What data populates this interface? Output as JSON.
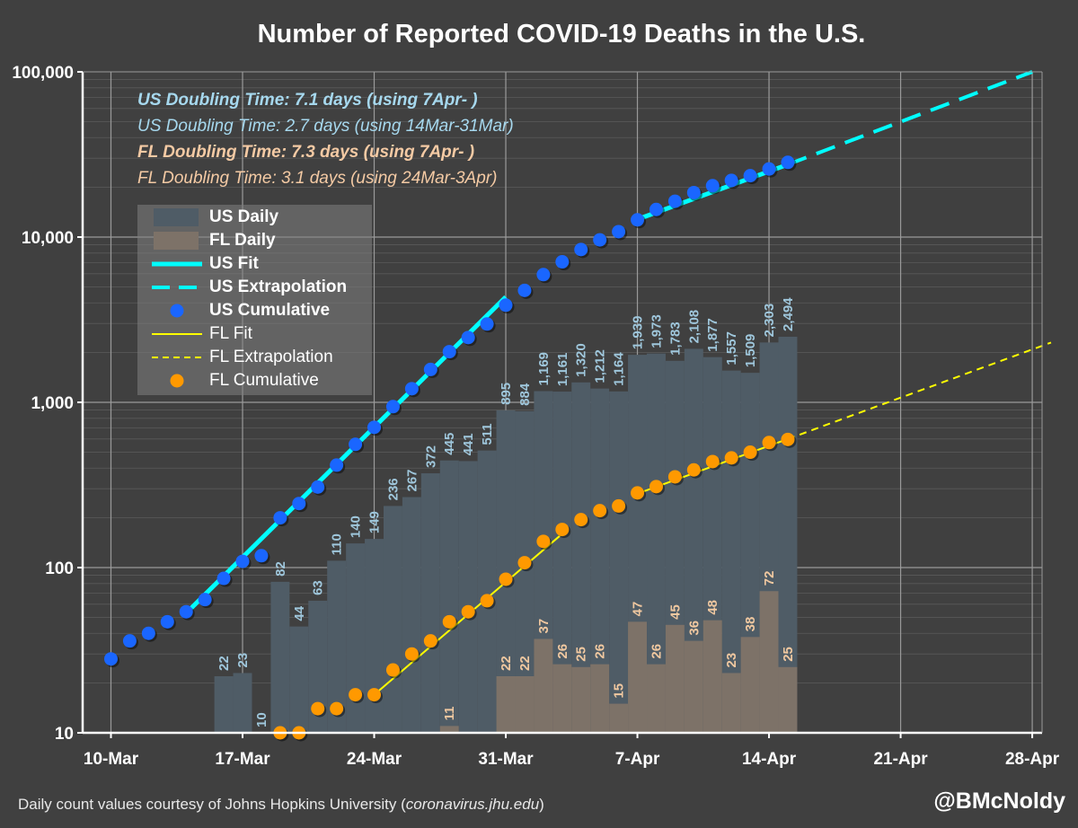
{
  "title": "Number of Reported COVID-19 Deaths in the U.S.",
  "notes": [
    {
      "text": "US Doubling Time: 7.1 days (using 7Apr- )",
      "color": "#a6d8ee",
      "bold": true
    },
    {
      "text": "US Doubling Time: 2.7 days (using 14Mar-31Mar)",
      "color": "#a6d8ee",
      "bold": false
    },
    {
      "text": "FL Doubling Time: 7.3 days (using 7Apr- )",
      "color": "#f4caa4",
      "bold": true
    },
    {
      "text": "FL Doubling Time: 3.1 days (using 24Mar-3Apr)",
      "color": "#f4caa4",
      "bold": false
    }
  ],
  "legend": [
    {
      "label": "US Daily",
      "kind": "bar",
      "color": "#4f5c66",
      "bold": true
    },
    {
      "label": "FL Daily",
      "kind": "bar",
      "color": "#7d7268",
      "bold": true
    },
    {
      "label": "US Fit",
      "kind": "line",
      "color": "#00ffff",
      "bold": true
    },
    {
      "label": "US Extrapolation",
      "kind": "dash",
      "color": "#00ffff",
      "bold": true
    },
    {
      "label": "US Cumulative",
      "kind": "dot",
      "color": "#1a66ff",
      "bold": true
    },
    {
      "label": "FL Fit",
      "kind": "line",
      "color": "#ffff00",
      "bold": false
    },
    {
      "label": "FL Extrapolation",
      "kind": "dash",
      "color": "#ffff00",
      "bold": false
    },
    {
      "label": "FL Cumulative",
      "kind": "dot",
      "color": "#ff9900",
      "bold": false
    }
  ],
  "credit": {
    "prefix": "Daily count values courtesy of Johns Hopkins University (",
    "link": "coronavirus.jhu.edu",
    "suffix": ")"
  },
  "handle": "@BMcNoldy",
  "colors": {
    "background": "#404040",
    "us_bar": "#4f5c66",
    "fl_bar": "#7d7268",
    "us_label": "#9fc7dc",
    "fl_label": "#f0c8a0",
    "us_fit": "#00ffff",
    "fl_fit": "#ffff00",
    "us_dot": "#1a66ff",
    "fl_dot": "#ff9900"
  },
  "chart_data": {
    "type": "bar",
    "title": "Number of Reported COVID-19 Deaths in the U.S.",
    "y_scale": "log",
    "ylim": [
      10,
      100000
    ],
    "y_ticks": [
      "10",
      "100",
      "1,000",
      "10,000",
      "100,000"
    ],
    "x_range": [
      "10-Mar",
      "29-Apr"
    ],
    "x_ticks": [
      "10-Mar",
      "17-Mar",
      "24-Mar",
      "31-Mar",
      "7-Apr",
      "14-Apr",
      "21-Apr",
      "28-Apr"
    ],
    "grid": true,
    "legend_position": "upper-left",
    "series": [
      {
        "name": "US Daily",
        "kind": "bar",
        "dates": [
          "16-Mar",
          "17-Mar",
          "18-Mar",
          "19-Mar",
          "20-Mar",
          "21-Mar",
          "22-Mar",
          "23-Mar",
          "24-Mar",
          "25-Mar",
          "26-Mar",
          "27-Mar",
          "28-Mar",
          "29-Mar",
          "30-Mar",
          "31-Mar",
          "1-Apr",
          "2-Apr",
          "3-Apr",
          "4-Apr",
          "5-Apr",
          "6-Apr",
          "7-Apr",
          "8-Apr",
          "9-Apr",
          "10-Apr",
          "11-Apr",
          "12-Apr",
          "13-Apr",
          "14-Apr",
          "15-Apr"
        ],
        "values": [
          22,
          23,
          10,
          82,
          44,
          63,
          110,
          140,
          149,
          236,
          267,
          372,
          445,
          441,
          511,
          895,
          884,
          1169,
          1161,
          1320,
          1212,
          1164,
          1939,
          1973,
          1783,
          2108,
          1877,
          1557,
          1509,
          2303,
          2494
        ],
        "labels": [
          "22",
          "23",
          "10",
          "82",
          "44",
          "63",
          "110",
          "140",
          "149",
          "236",
          "267",
          "372",
          "445",
          "441",
          "511",
          "895",
          "884",
          "1,169",
          "1,161",
          "1,320",
          "1,212",
          "1,164",
          "1,939",
          "1,973",
          "1,783",
          "2,108",
          "1,877",
          "1,557",
          "1,509",
          "2,303",
          "2,494"
        ]
      },
      {
        "name": "FL Daily",
        "kind": "bar",
        "dates": [
          "28-Mar",
          "31-Mar",
          "1-Apr",
          "2-Apr",
          "3-Apr",
          "4-Apr",
          "5-Apr",
          "6-Apr",
          "7-Apr",
          "8-Apr",
          "9-Apr",
          "10-Apr",
          "11-Apr",
          "12-Apr",
          "13-Apr",
          "14-Apr",
          "15-Apr"
        ],
        "values": [
          11,
          22,
          22,
          37,
          26,
          25,
          26,
          15,
          47,
          26,
          45,
          36,
          48,
          23,
          38,
          72,
          25
        ],
        "labels": [
          "11",
          "22",
          "22",
          "37",
          "26",
          "25",
          "26",
          "15",
          "47",
          "26",
          "45",
          "36",
          "48",
          "23",
          "38",
          "72",
          "25"
        ]
      },
      {
        "name": "US Cumulative",
        "kind": "dot",
        "dates": [
          "10-Mar",
          "11-Mar",
          "12-Mar",
          "13-Mar",
          "14-Mar",
          "15-Mar",
          "16-Mar",
          "17-Mar",
          "18-Mar",
          "19-Mar",
          "20-Mar",
          "21-Mar",
          "22-Mar",
          "23-Mar",
          "24-Mar",
          "25-Mar",
          "26-Mar",
          "27-Mar",
          "28-Mar",
          "29-Mar",
          "30-Mar",
          "31-Mar",
          "1-Apr",
          "2-Apr",
          "3-Apr",
          "4-Apr",
          "5-Apr",
          "6-Apr",
          "7-Apr",
          "8-Apr",
          "9-Apr",
          "10-Apr",
          "11-Apr",
          "12-Apr",
          "13-Apr",
          "14-Apr",
          "15-Apr"
        ],
        "values": [
          28,
          36,
          40,
          47,
          54,
          64,
          86,
          109,
          118,
          200,
          244,
          307,
          417,
          557,
          706,
          942,
          1209,
          1581,
          2026,
          2467,
          2978,
          3873,
          4757,
          5926,
          7087,
          8407,
          9619,
          10783,
          12722,
          14695,
          16478,
          18586,
          20463,
          22020,
          23529,
          25832,
          28326
        ]
      },
      {
        "name": "FL Cumulative",
        "kind": "dot",
        "dates": [
          "19-Mar",
          "20-Mar",
          "21-Mar",
          "22-Mar",
          "23-Mar",
          "24-Mar",
          "25-Mar",
          "26-Mar",
          "27-Mar",
          "28-Mar",
          "29-Mar",
          "30-Mar",
          "31-Mar",
          "1-Apr",
          "2-Apr",
          "3-Apr",
          "4-Apr",
          "5-Apr",
          "6-Apr",
          "7-Apr",
          "8-Apr",
          "9-Apr",
          "10-Apr",
          "11-Apr",
          "12-Apr",
          "13-Apr",
          "14-Apr",
          "15-Apr"
        ],
        "values": [
          10,
          10,
          14,
          14,
          17,
          17,
          24,
          30,
          36,
          47,
          54,
          63,
          85,
          107,
          144,
          170,
          195,
          221,
          236,
          283,
          309,
          354,
          390,
          438,
          461,
          499,
          571,
          596
        ]
      },
      {
        "name": "US Fit",
        "kind": "line",
        "segments": [
          {
            "from": "14-Mar",
            "to": "31-Mar",
            "y_from": 53,
            "y_to": 4340
          },
          {
            "from": "7-Apr",
            "to": "15-Apr",
            "y_from": 12800,
            "y_to": 27500
          }
        ]
      },
      {
        "name": "US Extrapolation",
        "kind": "dash",
        "from": "15-Apr",
        "to": "28-Apr",
        "y_from": 27500,
        "y_to": 100000
      },
      {
        "name": "FL Fit",
        "kind": "line",
        "segments": [
          {
            "from": "24-Mar",
            "to": "3-Apr",
            "y_from": 17,
            "y_to": 160
          },
          {
            "from": "7-Apr",
            "to": "15-Apr",
            "y_from": 280,
            "y_to": 600
          }
        ]
      },
      {
        "name": "FL Extrapolation",
        "kind": "dash",
        "from": "15-Apr",
        "to": "29-Apr",
        "y_from": 600,
        "y_to": 2300
      }
    ]
  }
}
